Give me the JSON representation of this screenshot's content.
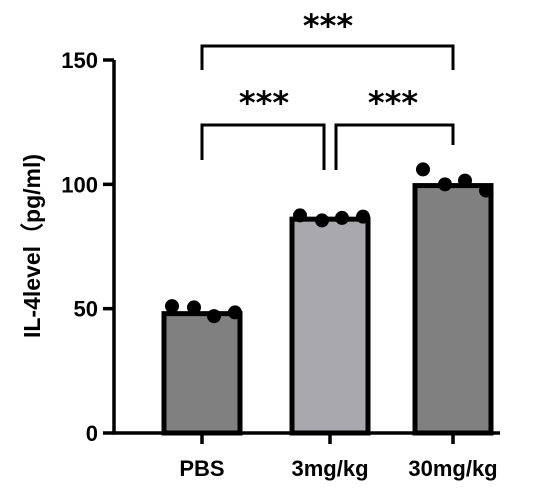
{
  "chart_data": {
    "type": "bar",
    "title": "",
    "xlabel": "",
    "ylabel": "IL-4level（pg/ml)",
    "ylim": [
      0,
      150
    ],
    "yticks": [
      0,
      50,
      100,
      150
    ],
    "categories": [
      "PBS",
      "3mg/kg",
      "30mg/kg"
    ],
    "values": [
      48,
      86,
      99.5
    ],
    "points": [
      [
        51,
        50.5,
        47,
        48.5
      ],
      [
        87.5,
        85.5,
        86.5,
        87
      ],
      [
        106,
        100,
        101.5,
        97.5
      ]
    ],
    "colors": [
      "#808080",
      "#a8a8ae",
      "#808080"
    ],
    "significance": [
      {
        "from": 0,
        "to": 1,
        "label": "***"
      },
      {
        "from": 1,
        "to": 2,
        "label": "***"
      },
      {
        "from": 0,
        "to": 2,
        "label": "***"
      }
    ],
    "grid": false,
    "legend": "none"
  }
}
